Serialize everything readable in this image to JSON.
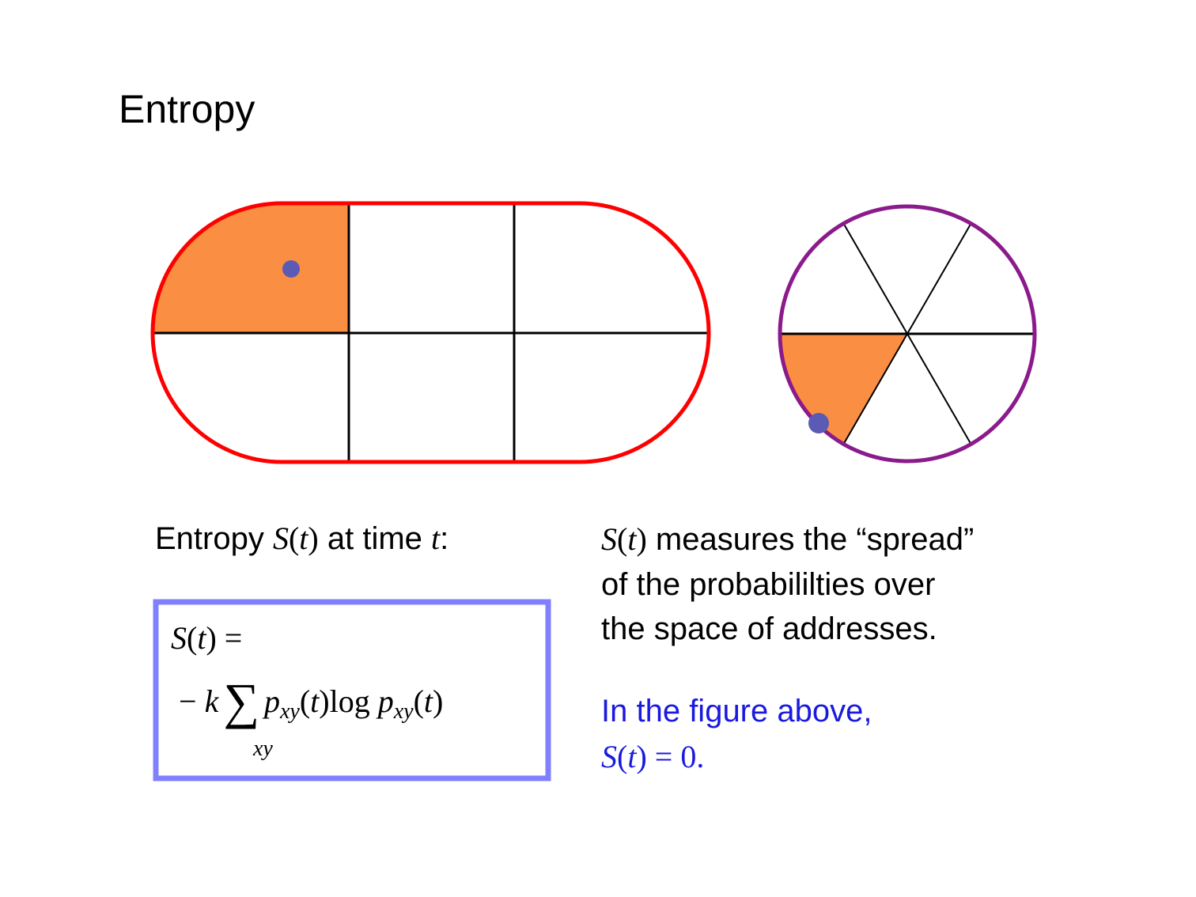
{
  "title": "Entropy",
  "caption": [
    "Entropy ",
    "S",
    "(",
    "t",
    ")",
    " at time ",
    "t",
    ":"
  ],
  "formula": {
    "line1": [
      "S",
      "(",
      "t",
      ")",
      " ="
    ],
    "line2": [
      "− ",
      "k",
      "∑",
      "p",
      "xy",
      "(",
      "t",
      ")log ",
      "p",
      "xy",
      "(",
      "t",
      ")"
    ],
    "sum_index": "xy"
  },
  "description": {
    "line1": [
      "S",
      "(",
      "t",
      ")",
      " measures the “spread”"
    ],
    "line2": "of the probabililties over",
    "line3": "the space of addresses."
  },
  "note": {
    "line1": "In the figure above,",
    "line2": [
      "S",
      "(",
      "t",
      ")",
      " = 0."
    ]
  }
}
